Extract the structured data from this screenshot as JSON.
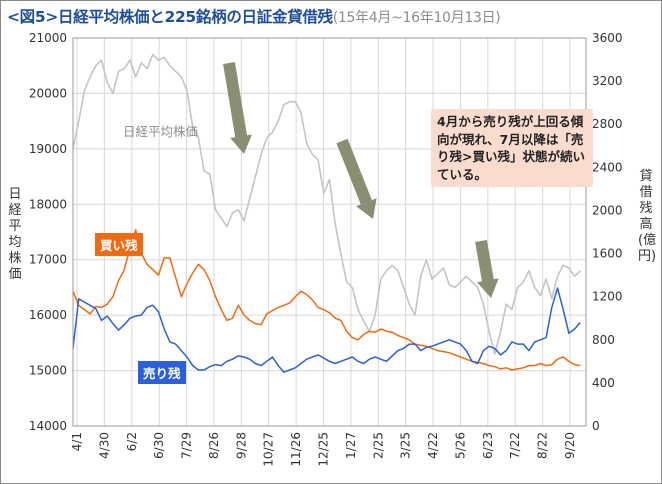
{
  "title": {
    "main": "<図5>日経平均株価と225銘柄の日証金貸借残",
    "sub": "(15年4月~16年10月13日)"
  },
  "annotation": "4月から売り残が上回る傾向が現れ、7月以降は「売り残>買い残」状態が続いている。",
  "colors": {
    "nikkei": "#c4c4c4",
    "buy": "#f06a10",
    "sell": "#2b5fdb",
    "arrow": "#8b8e73",
    "grid": "#d8d8d8",
    "annotation_bg": "#f9dccd"
  },
  "chart_data": {
    "type": "line",
    "xlabel": "",
    "x_ticks": [
      "4/1",
      "4/30",
      "6/2",
      "6/30",
      "7/29",
      "8/26",
      "9/28",
      "10/27",
      "11/26",
      "12/25",
      "1/27",
      "2/25",
      "3/25",
      "4/22",
      "5/26",
      "6/23",
      "7/22",
      "8/22",
      "9/20"
    ],
    "y_left": {
      "label": "日経平均株価",
      "range": [
        14000,
        21000
      ],
      "ticks": [
        14000,
        15000,
        16000,
        17000,
        18000,
        19000,
        20000,
        21000
      ]
    },
    "y_right": {
      "label": "貸借残高(億円)",
      "range": [
        0,
        3600
      ],
      "ticks": [
        0,
        400,
        800,
        1200,
        1600,
        2000,
        2400,
        2800,
        3200,
        3600
      ]
    },
    "grid": true,
    "series": [
      {
        "name": "日経平均株価",
        "axis": "left",
        "values": [
          [
            0,
            19000
          ],
          [
            1,
            19500
          ],
          [
            2,
            20050
          ],
          [
            3,
            20300
          ],
          [
            4,
            20500
          ],
          [
            5,
            20600
          ],
          [
            6,
            20200
          ],
          [
            7,
            20000
          ],
          [
            8,
            20400
          ],
          [
            9,
            20450
          ],
          [
            10,
            20600
          ],
          [
            11,
            20300
          ],
          [
            12,
            20550
          ],
          [
            13,
            20450
          ],
          [
            14,
            20700
          ],
          [
            15,
            20600
          ],
          [
            16,
            20650
          ],
          [
            17,
            20500
          ],
          [
            18,
            20400
          ],
          [
            19,
            20300
          ],
          [
            20,
            20050
          ],
          [
            21,
            19400
          ],
          [
            22,
            19200
          ],
          [
            23,
            18600
          ],
          [
            24,
            18550
          ],
          [
            25,
            17900
          ],
          [
            26,
            17750
          ],
          [
            27,
            17600
          ],
          [
            28,
            17850
          ],
          [
            29,
            17900
          ],
          [
            30,
            17700
          ],
          [
            31,
            18100
          ],
          [
            32,
            18500
          ],
          [
            33,
            18900
          ],
          [
            34,
            19200
          ],
          [
            35,
            19300
          ],
          [
            36,
            19500
          ],
          [
            37,
            19800
          ],
          [
            38,
            19850
          ],
          [
            39,
            19850
          ],
          [
            40,
            19650
          ],
          [
            41,
            19100
          ],
          [
            42,
            18900
          ],
          [
            43,
            18800
          ],
          [
            44,
            18200
          ],
          [
            45,
            18450
          ],
          [
            46,
            17650
          ],
          [
            47,
            17100
          ],
          [
            48,
            16600
          ],
          [
            49,
            16500
          ],
          [
            50,
            16100
          ],
          [
            51,
            15900
          ],
          [
            52,
            15700
          ],
          [
            53,
            16000
          ],
          [
            54,
            16650
          ],
          [
            55,
            16800
          ],
          [
            56,
            16900
          ],
          [
            57,
            16800
          ],
          [
            58,
            16500
          ],
          [
            59,
            16200
          ],
          [
            60,
            16000
          ],
          [
            61,
            16700
          ],
          [
            62,
            17000
          ],
          [
            63,
            16650
          ],
          [
            64,
            16750
          ],
          [
            65,
            16850
          ],
          [
            66,
            16550
          ],
          [
            67,
            16500
          ],
          [
            68,
            16600
          ],
          [
            69,
            16700
          ],
          [
            70,
            16600
          ],
          [
            71,
            16500
          ],
          [
            72,
            16200
          ],
          [
            73,
            15700
          ],
          [
            74,
            15300
          ],
          [
            75,
            15700
          ],
          [
            76,
            16200
          ],
          [
            77,
            16100
          ],
          [
            78,
            16500
          ],
          [
            79,
            16600
          ],
          [
            80,
            16800
          ],
          [
            81,
            16500
          ],
          [
            82,
            16350
          ],
          [
            83,
            16650
          ],
          [
            84,
            16300
          ],
          [
            85,
            16700
          ],
          [
            86,
            16900
          ],
          [
            87,
            16850
          ],
          [
            88,
            16700
          ],
          [
            89,
            16800
          ]
        ]
      },
      {
        "name": "買い残",
        "axis": "right",
        "values": [
          [
            0,
            1250
          ],
          [
            1,
            1120
          ],
          [
            2,
            1080
          ],
          [
            3,
            1040
          ],
          [
            4,
            1110
          ],
          [
            5,
            1100
          ],
          [
            6,
            1130
          ],
          [
            7,
            1200
          ],
          [
            8,
            1350
          ],
          [
            9,
            1450
          ],
          [
            10,
            1650
          ],
          [
            11,
            1820
          ],
          [
            12,
            1600
          ],
          [
            13,
            1500
          ],
          [
            14,
            1450
          ],
          [
            15,
            1400
          ],
          [
            16,
            1560
          ],
          [
            17,
            1560
          ],
          [
            18,
            1380
          ],
          [
            19,
            1200
          ],
          [
            20,
            1320
          ],
          [
            21,
            1420
          ],
          [
            22,
            1500
          ],
          [
            23,
            1450
          ],
          [
            24,
            1350
          ],
          [
            25,
            1200
          ],
          [
            26,
            1080
          ],
          [
            27,
            980
          ],
          [
            28,
            1000
          ],
          [
            29,
            1120
          ],
          [
            30,
            1030
          ],
          [
            31,
            980
          ],
          [
            32,
            950
          ],
          [
            33,
            940
          ],
          [
            34,
            1040
          ],
          [
            35,
            1070
          ],
          [
            36,
            1100
          ],
          [
            37,
            1120
          ],
          [
            38,
            1140
          ],
          [
            39,
            1200
          ],
          [
            40,
            1250
          ],
          [
            41,
            1220
          ],
          [
            42,
            1170
          ],
          [
            43,
            1100
          ],
          [
            44,
            1080
          ],
          [
            45,
            1050
          ],
          [
            46,
            1000
          ],
          [
            47,
            980
          ],
          [
            48,
            880
          ],
          [
            49,
            820
          ],
          [
            50,
            800
          ],
          [
            51,
            850
          ],
          [
            52,
            880
          ],
          [
            53,
            870
          ],
          [
            54,
            900
          ],
          [
            55,
            880
          ],
          [
            56,
            870
          ],
          [
            57,
            840
          ],
          [
            58,
            820
          ],
          [
            59,
            800
          ],
          [
            60,
            760
          ],
          [
            61,
            750
          ],
          [
            62,
            740
          ],
          [
            63,
            720
          ],
          [
            64,
            700
          ],
          [
            65,
            690
          ],
          [
            66,
            680
          ],
          [
            67,
            660
          ],
          [
            68,
            640
          ],
          [
            69,
            620
          ],
          [
            70,
            600
          ],
          [
            71,
            590
          ],
          [
            72,
            580
          ],
          [
            73,
            560
          ],
          [
            74,
            550
          ],
          [
            75,
            530
          ],
          [
            76,
            540
          ],
          [
            77,
            520
          ],
          [
            78,
            530
          ],
          [
            79,
            540
          ],
          [
            80,
            560
          ],
          [
            81,
            560
          ],
          [
            82,
            580
          ],
          [
            83,
            560
          ],
          [
            84,
            570
          ],
          [
            85,
            620
          ],
          [
            86,
            640
          ],
          [
            87,
            600
          ],
          [
            88,
            570
          ],
          [
            89,
            560
          ]
        ]
      },
      {
        "name": "売り残",
        "axis": "right",
        "values": [
          [
            0,
            720
          ],
          [
            1,
            1180
          ],
          [
            2,
            1150
          ],
          [
            3,
            1120
          ],
          [
            4,
            1090
          ],
          [
            5,
            980
          ],
          [
            6,
            1020
          ],
          [
            7,
            950
          ],
          [
            8,
            890
          ],
          [
            9,
            940
          ],
          [
            10,
            1000
          ],
          [
            11,
            1020
          ],
          [
            12,
            1030
          ],
          [
            13,
            1100
          ],
          [
            14,
            1120
          ],
          [
            15,
            1060
          ],
          [
            16,
            900
          ],
          [
            17,
            780
          ],
          [
            18,
            760
          ],
          [
            19,
            700
          ],
          [
            20,
            640
          ],
          [
            21,
            560
          ],
          [
            22,
            520
          ],
          [
            23,
            520
          ],
          [
            24,
            550
          ],
          [
            25,
            570
          ],
          [
            26,
            560
          ],
          [
            27,
            600
          ],
          [
            28,
            620
          ],
          [
            29,
            650
          ],
          [
            30,
            640
          ],
          [
            31,
            620
          ],
          [
            32,
            580
          ],
          [
            33,
            560
          ],
          [
            34,
            600
          ],
          [
            35,
            640
          ],
          [
            36,
            560
          ],
          [
            37,
            500
          ],
          [
            38,
            520
          ],
          [
            39,
            540
          ],
          [
            40,
            580
          ],
          [
            41,
            620
          ],
          [
            42,
            640
          ],
          [
            43,
            660
          ],
          [
            44,
            630
          ],
          [
            45,
            600
          ],
          [
            46,
            580
          ],
          [
            47,
            600
          ],
          [
            48,
            620
          ],
          [
            49,
            640
          ],
          [
            50,
            600
          ],
          [
            51,
            580
          ],
          [
            52,
            620
          ],
          [
            53,
            640
          ],
          [
            54,
            620
          ],
          [
            55,
            600
          ],
          [
            56,
            650
          ],
          [
            57,
            700
          ],
          [
            58,
            720
          ],
          [
            59,
            760
          ],
          [
            60,
            760
          ],
          [
            61,
            700
          ],
          [
            62,
            730
          ],
          [
            63,
            740
          ],
          [
            64,
            760
          ],
          [
            65,
            780
          ],
          [
            66,
            800
          ],
          [
            67,
            780
          ],
          [
            68,
            760
          ],
          [
            69,
            700
          ],
          [
            70,
            600
          ],
          [
            71,
            580
          ],
          [
            72,
            700
          ],
          [
            73,
            740
          ],
          [
            74,
            720
          ],
          [
            75,
            660
          ],
          [
            76,
            700
          ],
          [
            77,
            780
          ],
          [
            78,
            760
          ],
          [
            79,
            760
          ],
          [
            80,
            700
          ],
          [
            81,
            780
          ],
          [
            82,
            800
          ],
          [
            83,
            820
          ],
          [
            84,
            1100
          ],
          [
            85,
            1280
          ],
          [
            86,
            1080
          ],
          [
            87,
            860
          ],
          [
            88,
            900
          ],
          [
            89,
            960
          ]
        ]
      }
    ]
  },
  "series_labels": {
    "nikkei": "日経平均株価",
    "buy": "買い残",
    "sell": "売り残"
  }
}
